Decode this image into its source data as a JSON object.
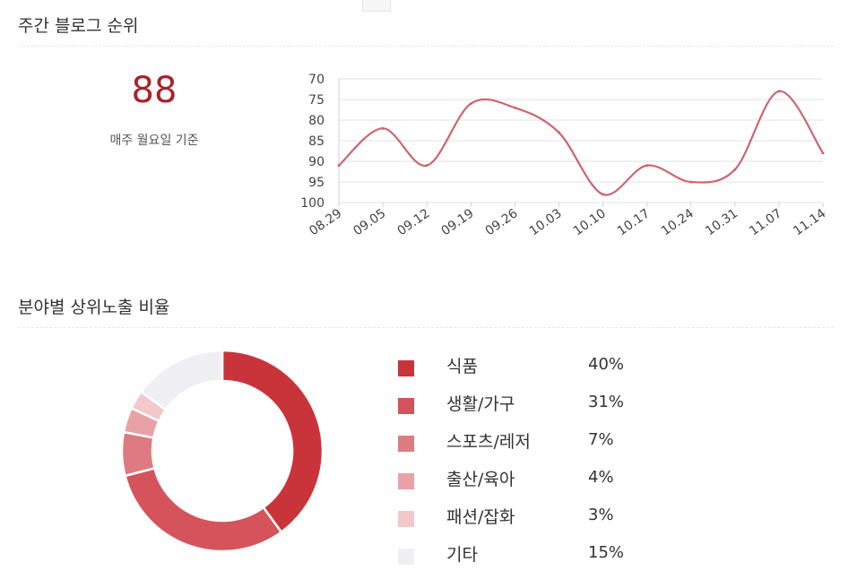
{
  "weekly": {
    "title": "주간 블로그 순위",
    "rank_value": "88",
    "rank_caption": "매주 월요일 기준"
  },
  "ratio": {
    "title": "분야별 상위노출 비율"
  },
  "colors": {
    "line": "#cc6670",
    "rank_text": "#a8232b"
  },
  "chart_data": [
    {
      "type": "line",
      "x": [
        "08.29",
        "09.05",
        "09.12",
        "09.19",
        "09.26",
        "10.03",
        "10.10",
        "10.17",
        "10.24",
        "10.31",
        "11.07",
        "11.14"
      ],
      "y_ticks": [
        70,
        75,
        80,
        85,
        90,
        95,
        100
      ],
      "ylim": [
        70,
        100
      ],
      "y_reversed": true,
      "grid": true,
      "series": [
        {
          "values": [
            91,
            82,
            91,
            76,
            77,
            83,
            98,
            91,
            95,
            92,
            73,
            88
          ]
        }
      ]
    },
    {
      "type": "pie",
      "donut": true,
      "slices": [
        {
          "label": "식품",
          "value": 40,
          "display": "40%",
          "color": "#c9343b"
        },
        {
          "label": "생활/가구",
          "value": 31,
          "display": "31%",
          "color": "#d5535b"
        },
        {
          "label": "스포츠/레저",
          "value": 7,
          "display": "7%",
          "color": "#de7b82"
        },
        {
          "label": "출산/육아",
          "value": 4,
          "display": "4%",
          "color": "#e8a2a7"
        },
        {
          "label": "패션/잡화",
          "value": 3,
          "display": "3%",
          "color": "#f2c8cb"
        },
        {
          "label": "기타",
          "value": 15,
          "display": "15%",
          "color": "#f0f0f2"
        }
      ]
    }
  ]
}
